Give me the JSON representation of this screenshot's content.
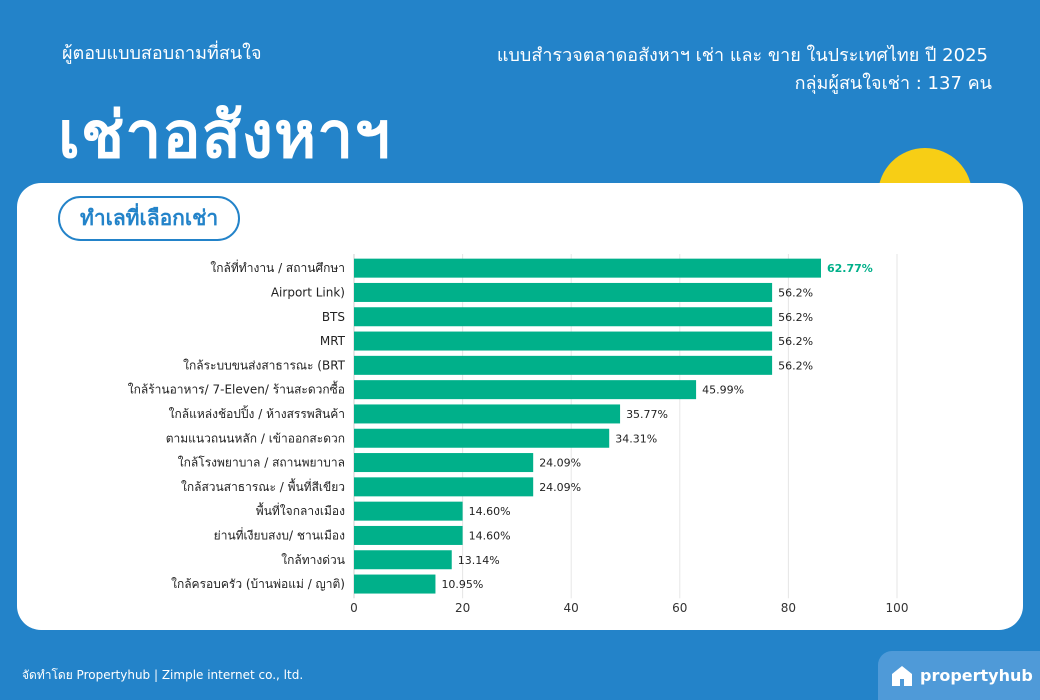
{
  "header": {
    "subtitle": "ผู้ตอบแบบสอบถามที่สนใจ",
    "title": "เช่าอสังหาฯ",
    "survey_title": "แบบสำรวจตลาดอสังหาฯ เช่า และ ขาย ในประเทศไทย ปี 2025",
    "respondents": "กลุ่มผู้สนใจเช่า : 137 คน"
  },
  "section_label": "ทำเลที่เลือกเช่า",
  "footer": {
    "credit": "จัดทำโดย Propertyhub | Zimple internet co., ltd.",
    "logo_text": "propertyhub",
    "logo_icon": "house-icon"
  },
  "colors": {
    "background": "#2383c9",
    "bar": "#00b08a",
    "top_label": "#00b08a",
    "sun": "#f7ce15"
  },
  "chart_data": {
    "type": "bar",
    "orientation": "horizontal",
    "categories": [
      "ใกล้ที่ทำงาน / สถานศึกษา",
      "Airport Link)",
      "BTS",
      "MRT",
      "ใกล้ระบบขนส่งสาธารณะ (BRT",
      "ใกล้ร้านอาหาร/ 7-Eleven/ ร้านสะดวกซื้อ",
      "ใกล้แหล่งช้อปปิ้ง / ห้างสรรพสินค้า",
      "ตามแนวถนนหลัก / เข้าออกสะดวก",
      "ใกล้โรงพยาบาล / สถานพยาบาล",
      "ใกล้สวนสาธารณะ / พื้นที่สีเขียว",
      "พื้นที่ใจกลางเมือง",
      "ย่านที่เงียบสงบ/ ชานเมือง",
      "ใกล้ทางด่วน",
      "ใกล้ครอบครัว (บ้านพ่อแม่ / ญาติ)"
    ],
    "values": [
      86,
      77,
      77,
      77,
      77,
      63,
      49,
      47,
      33,
      33,
      20,
      20,
      18,
      15
    ],
    "value_labels": [
      "62.77%",
      "56.2%",
      "56.2%",
      "56.2%",
      "56.2%",
      "45.99%",
      "35.77%",
      "34.31%",
      "24.09%",
      "24.09%",
      "14.60%",
      "14.60%",
      "13.14%",
      "10.95%"
    ],
    "xlim": [
      0,
      100
    ],
    "xticks": [
      "0",
      "20",
      "40",
      "60",
      "80",
      "100"
    ],
    "grid": true,
    "legend": "none"
  }
}
